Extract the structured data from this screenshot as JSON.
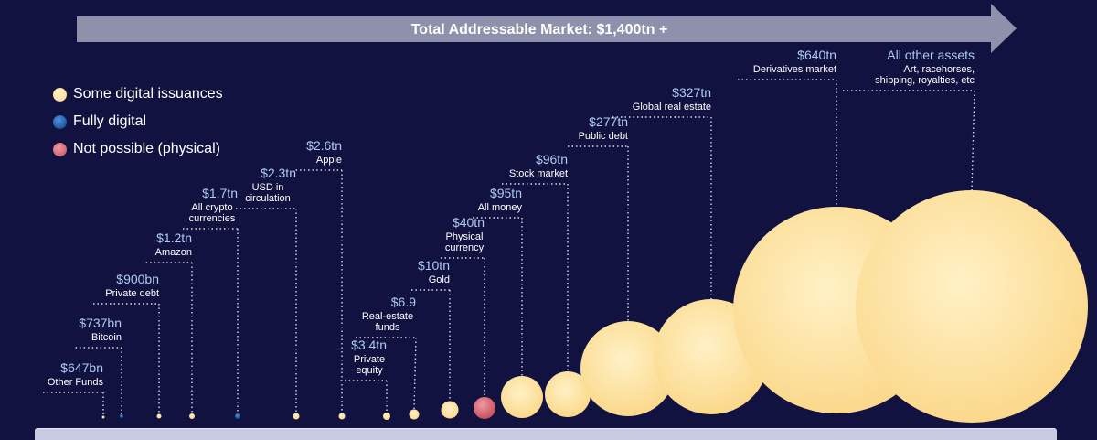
{
  "header": {
    "title": "Total Addressable Market: $1,400tn +"
  },
  "legend": [
    {
      "label": "Some digital issuances",
      "color": "#fde4a2",
      "icon": "pale-yellow-dot"
    },
    {
      "label": "Fully digital",
      "color": "#1d5fb3",
      "icon": "blue-dot"
    },
    {
      "label": "Not possible (physical)",
      "color": "#d9727e",
      "icon": "pink-dot"
    }
  ],
  "colors": {
    "background": "#121240",
    "arrow": "#8f90ab",
    "value_text": "#aecbf2",
    "label_text": "#ffffff",
    "leader": "#d9d9e6"
  },
  "chart_data": {
    "type": "bubble",
    "title": "Total Addressable Market: $1,400tn +",
    "categories": [
      "Other Funds",
      "Bitcoin",
      "Private debt",
      "Amazon",
      "All crypto currencies",
      "USD in circulation",
      "Apple",
      "Private equity",
      "Real-estate funds",
      "Gold",
      "Physical currency",
      "All money",
      "Stock market",
      "Public debt",
      "Global real estate",
      "Derivatives market",
      "All other assets"
    ],
    "series": [
      {
        "points": [
          {
            "value_label": "$647bn",
            "label": "Other Funds",
            "value_tn": 0.647,
            "kind": "digital-issuance"
          },
          {
            "value_label": "$737bn",
            "label": "Bitcoin",
            "value_tn": 0.737,
            "kind": "fully-digital"
          },
          {
            "value_label": "$900bn",
            "label": "Private debt",
            "value_tn": 0.9,
            "kind": "digital-issuance"
          },
          {
            "value_label": "$1.2tn",
            "label": "Amazon",
            "value_tn": 1.2,
            "kind": "digital-issuance"
          },
          {
            "value_label": "$1.7tn",
            "label": "All crypto currencies",
            "value_tn": 1.7,
            "kind": "fully-digital"
          },
          {
            "value_label": "$2.3tn",
            "label": "USD in circulation",
            "value_tn": 2.3,
            "kind": "digital-issuance"
          },
          {
            "value_label": "$2.6tn",
            "label": "Apple",
            "value_tn": 2.6,
            "kind": "digital-issuance"
          },
          {
            "value_label": "$3.4tn",
            "label": "Private equity",
            "value_tn": 3.4,
            "kind": "digital-issuance"
          },
          {
            "value_label": "$6.9",
            "label": "Real-estate funds",
            "value_tn": 6.9,
            "kind": "digital-issuance"
          },
          {
            "value_label": "$10tn",
            "label": "Gold",
            "value_tn": 10,
            "kind": "digital-issuance"
          },
          {
            "value_label": "$40tn",
            "label": "Physical currency",
            "value_tn": 40,
            "kind": "physical"
          },
          {
            "value_label": "$95tn",
            "label": "All money",
            "value_tn": 95,
            "kind": "digital-issuance"
          },
          {
            "value_label": "$96tn",
            "label": "Stock market",
            "value_tn": 96,
            "kind": "digital-issuance"
          },
          {
            "value_label": "$277tn",
            "label": "Public debt",
            "value_tn": 277,
            "kind": "digital-issuance"
          },
          {
            "value_label": "$327tn",
            "label": "Global real estate",
            "value_tn": 327,
            "kind": "digital-issuance"
          },
          {
            "value_label": "$640tn",
            "label": "Derivatives market",
            "value_tn": 640,
            "kind": "digital-issuance"
          },
          {
            "value_label": "All other assets",
            "label": "Art, racehorses, shipping, royalties, etc",
            "value_tn": null,
            "kind": "digital-issuance"
          }
        ]
      }
    ]
  }
}
